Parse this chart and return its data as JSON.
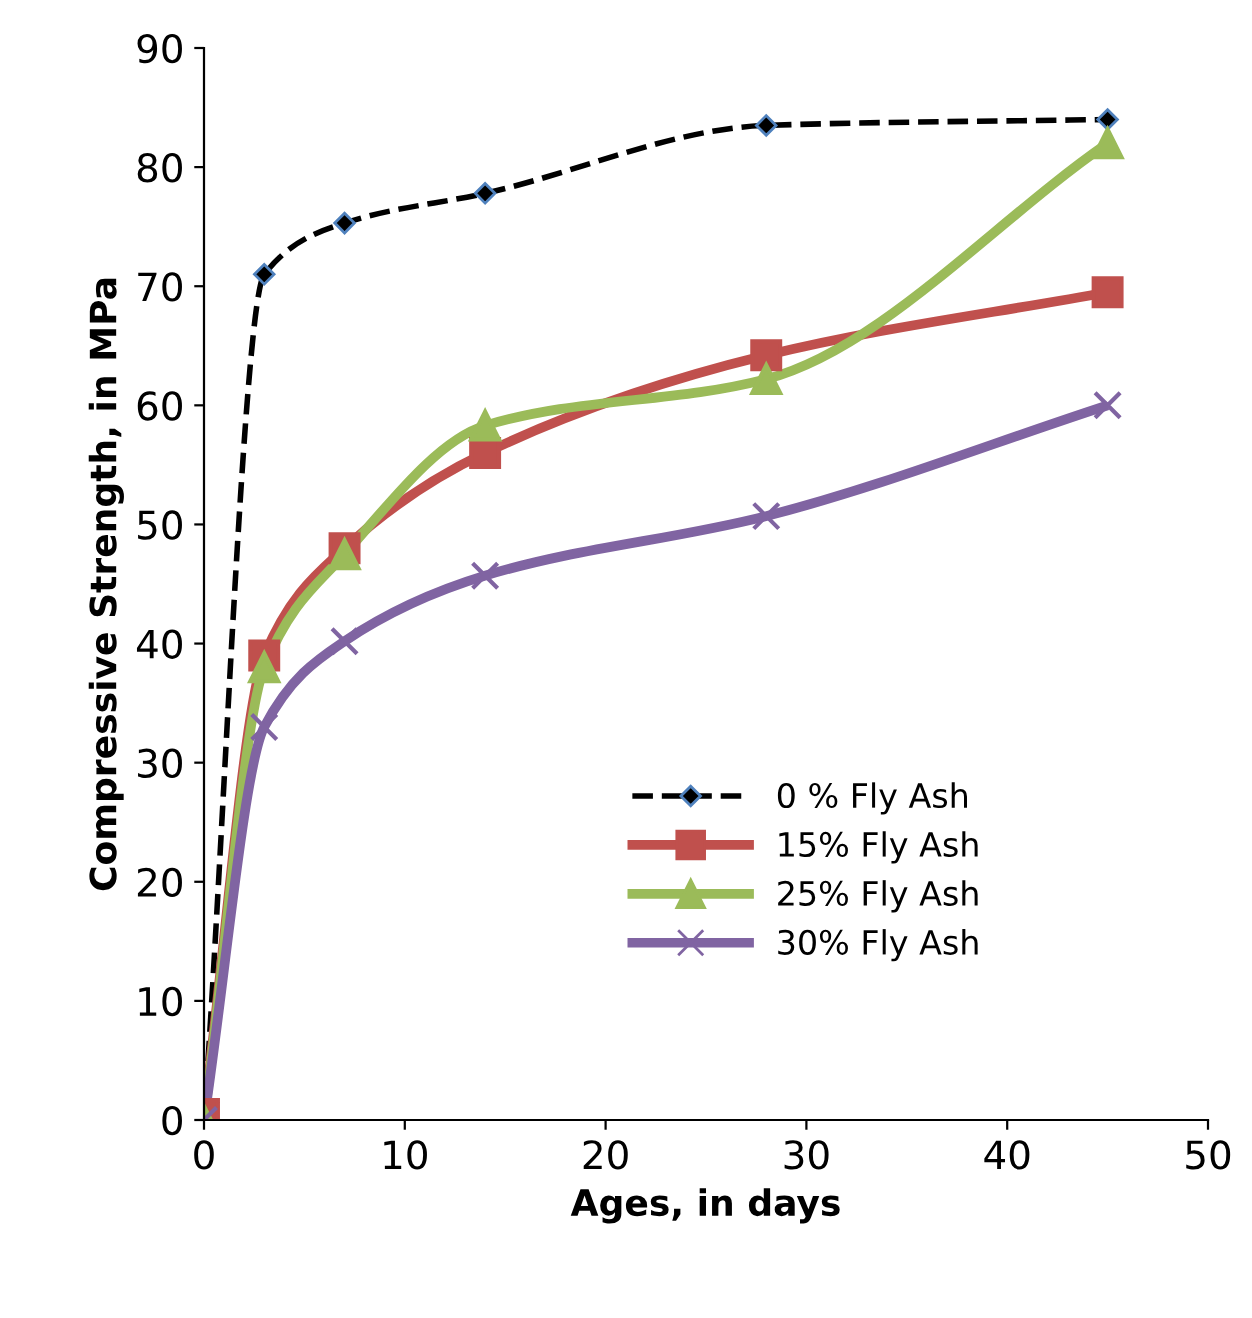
{
  "chart_data": {
    "type": "line",
    "xlabel": "Ages, in days",
    "ylabel": "Compressive Strength, in MPa",
    "x": [
      0,
      3,
      7,
      14,
      28,
      45
    ],
    "xlim": [
      0,
      50
    ],
    "xticks": [
      0,
      10,
      20,
      30,
      40,
      50
    ],
    "ylim": [
      0,
      90
    ],
    "yticks": [
      0,
      10,
      20,
      30,
      40,
      50,
      60,
      70,
      80,
      90
    ],
    "grid": false,
    "legend": "bottom",
    "series": [
      {
        "name": "0 % Fly Ash",
        "color": "#000000",
        "marker": "diamond",
        "line_style": "dashed",
        "values": [
          0,
          71,
          75.3,
          77.8,
          83.5,
          84
        ]
      },
      {
        "name": "15% Fly Ash",
        "color": "#c0504d",
        "marker": "square",
        "line_style": "solid",
        "values": [
          0.5,
          39,
          48,
          56,
          64.2,
          69.5
        ]
      },
      {
        "name": "25% Fly Ash",
        "color": "#9bbb59",
        "marker": "triangle",
        "line_style": "solid",
        "values": [
          0,
          38,
          47.5,
          58.3,
          62.2,
          82
        ]
      },
      {
        "name": "30% Fly Ash",
        "color": "#8064a2",
        "marker": "cross",
        "line_style": "solid",
        "values": [
          0,
          33,
          40.2,
          45.7,
          50.7,
          60
        ]
      }
    ]
  }
}
